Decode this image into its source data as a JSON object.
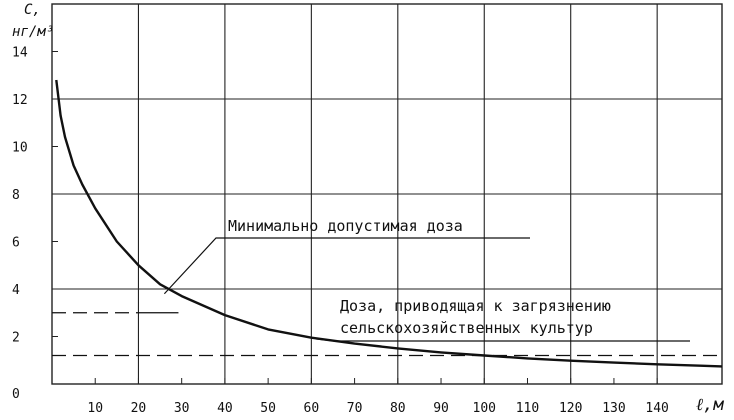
{
  "chart_data": {
    "type": "line",
    "ylabel": "С,",
    "yunit": "нг/м³",
    "xlabel": "ℓ,м",
    "xlim": [
      0,
      155
    ],
    "ylim": [
      0,
      16
    ],
    "x_ticks": [
      10,
      20,
      30,
      40,
      50,
      60,
      70,
      80,
      90,
      100,
      110,
      120,
      130,
      140
    ],
    "y_ticks": [
      0,
      2,
      4,
      6,
      8,
      10,
      12,
      14
    ],
    "grid": true,
    "series": [
      {
        "x": [
          1,
          2,
          3,
          5,
          7,
          10,
          15,
          20,
          25,
          30,
          40,
          50,
          60,
          70,
          80,
          90,
          100,
          110,
          120,
          130,
          140,
          150,
          155
        ],
        "y": [
          12.8,
          11.3,
          10.4,
          9.2,
          8.4,
          7.4,
          6.0,
          5.0,
          4.2,
          3.7,
          2.9,
          2.3,
          1.95,
          1.7,
          1.5,
          1.33,
          1.2,
          1.08,
          0.98,
          0.9,
          0.83,
          0.77,
          0.74
        ]
      }
    ],
    "reference_lines": [
      {
        "y": 3.0,
        "x_start": 0,
        "x_end": 20
      },
      {
        "y": 1.2,
        "x_start": 0,
        "x_end": 155
      }
    ],
    "annotations": [
      {
        "id": "min-dose",
        "text": "Минимально допустимая доза",
        "target_x": 26,
        "target_y": 3.8
      },
      {
        "id": "crop-dose",
        "text_lines": [
          "Доза, приводящая к загрязнению",
          "сельскохозяйственных культур"
        ],
        "target_x": 61,
        "target_y": 1.9
      }
    ],
    "colors": {
      "line": "#111111",
      "grid": "#222222"
    }
  }
}
